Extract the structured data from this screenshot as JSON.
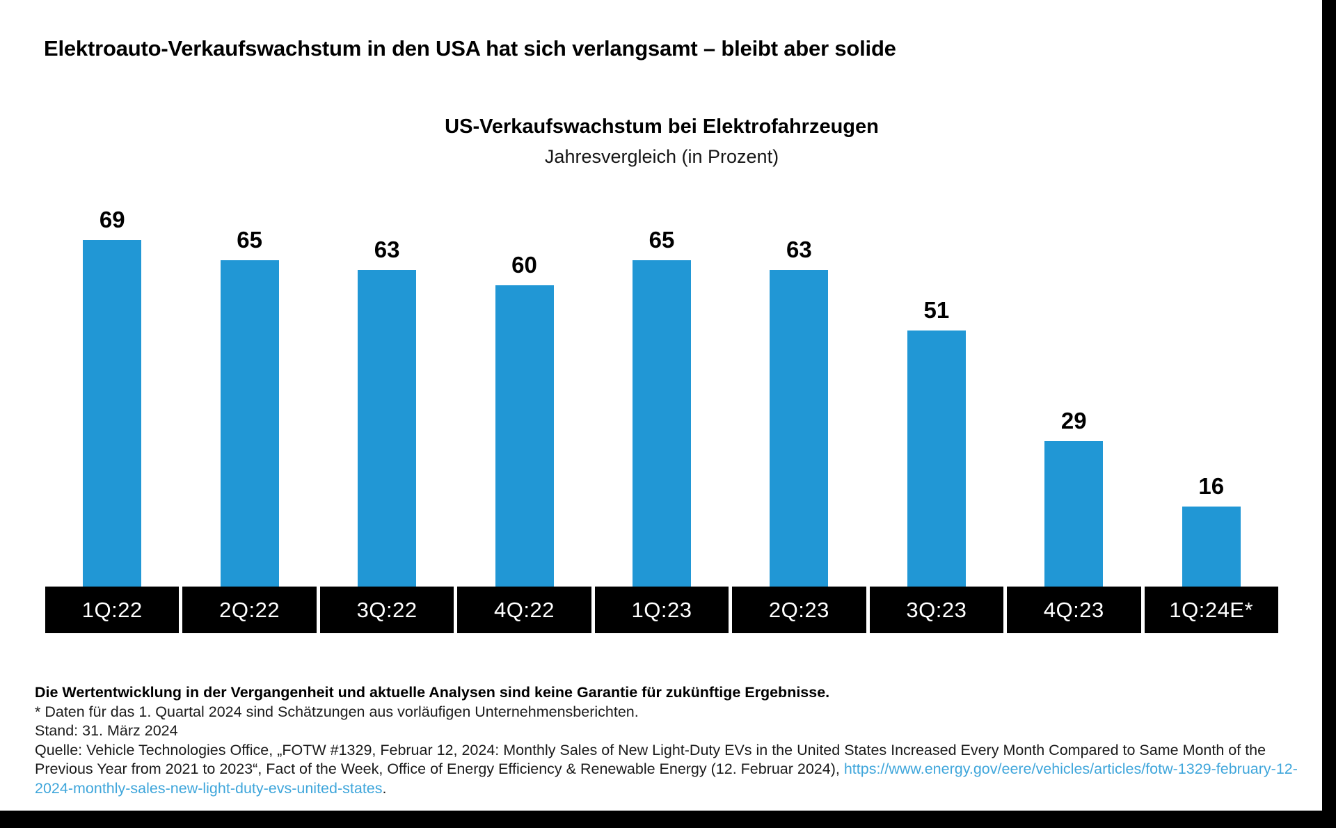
{
  "page_title": "Elektroauto-Verkaufswachstum in den USA hat sich verlangsamt – bleibt aber solide",
  "chart_data": {
    "type": "bar",
    "title": "US-Verkaufswachstum bei Elektrofahrzeugen",
    "subtitle": "Jahresvergleich (in Prozent)",
    "categories": [
      "1Q:22",
      "2Q:22",
      "3Q:22",
      "4Q:22",
      "1Q:23",
      "2Q:23",
      "3Q:23",
      "4Q:23",
      "1Q:24E*"
    ],
    "values": [
      69,
      65,
      63,
      60,
      65,
      63,
      51,
      29,
      16
    ],
    "xlabel": "",
    "ylabel": "",
    "ylim": [
      0,
      69
    ],
    "grid": false,
    "legend": false,
    "value_labels_position": "above-bars",
    "bar_color": "#2197d5",
    "label_band_bg": "#000000",
    "label_text_color": "#ffffff"
  },
  "footer": {
    "disclaimer": "Die Wertentwicklung in der Vergangenheit und aktuelle Analysen sind keine Garantie für zukünftige Ergebnisse.",
    "footnote": "* Daten für das 1. Quartal 2024 sind Schätzungen aus vorläufigen Unternehmensberichten.",
    "as_of": "Stand: 31. März 2024",
    "source_prefix": "Quelle: Vehicle Technologies Office, „FOTW #1329, Februar 12, 2024: Monthly Sales of New Light-Duty EVs in the United States Increased Every Month Compared to Same Month of the Previous Year from 2021 to 2023“, Fact of the Week, Office of Energy Efficiency & Renewable Energy (12. Februar 2024), ",
    "source_link": "https://www.energy.gov/eere/vehicles/articles/fotw-1329-february-12-2024-monthly-sales-new-light-duty-evs-united-states",
    "source_suffix": ".",
    "link_color": "#3fa6db"
  }
}
